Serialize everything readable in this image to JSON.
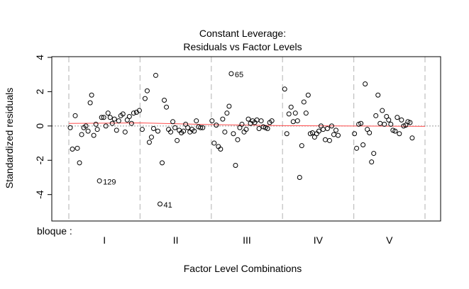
{
  "chart_data": {
    "type": "scatter",
    "title": "Constant Leverage:",
    "subtitle": "Residuals vs Factor Levels",
    "xlabel": "Factor Level Combinations",
    "ylabel": "Standardized residuals",
    "factor_name": "bloque :",
    "groups": [
      "I",
      "II",
      "III",
      "IV",
      "V"
    ],
    "ylim": [
      -5.5,
      4
    ],
    "yticks": [
      "4",
      "2",
      "0",
      "-2",
      "-4"
    ],
    "ytick_values": [
      4,
      2,
      0,
      -2,
      -4
    ],
    "point_color": "#000000",
    "smooth_color": "#ff4d4d",
    "zero_line_color": "#999999",
    "divider_color": "#bfbfbf",
    "points": [
      {
        "x": 0.02,
        "y": -0.1
      },
      {
        "x": 0.05,
        "y": -1.35
      },
      {
        "x": 0.09,
        "y": 0.6
      },
      {
        "x": 0.12,
        "y": -1.3
      },
      {
        "x": 0.15,
        "y": -2.15
      },
      {
        "x": 0.18,
        "y": -0.5
      },
      {
        "x": 0.21,
        "y": -0.1
      },
      {
        "x": 0.24,
        "y": 0.0
      },
      {
        "x": 0.27,
        "y": -0.3
      },
      {
        "x": 0.3,
        "y": 1.35
      },
      {
        "x": 0.32,
        "y": 1.8
      },
      {
        "x": 0.35,
        "y": -0.55
      },
      {
        "x": 0.38,
        "y": 0.1
      },
      {
        "x": 0.4,
        "y": -0.2
      },
      {
        "x": 0.43,
        "y": -3.2
      },
      {
        "x": 0.46,
        "y": 0.5
      },
      {
        "x": 0.49,
        "y": 0.5
      },
      {
        "x": 0.52,
        "y": 0.0
      },
      {
        "x": 0.55,
        "y": 0.75
      },
      {
        "x": 0.58,
        "y": 0.5
      },
      {
        "x": 0.61,
        "y": 0.15
      },
      {
        "x": 0.64,
        "y": 0.4
      },
      {
        "x": 0.67,
        "y": -0.25
      },
      {
        "x": 0.7,
        "y": 0.3
      },
      {
        "x": 0.73,
        "y": 0.6
      },
      {
        "x": 0.76,
        "y": 0.7
      },
      {
        "x": 0.79,
        "y": -0.35
      },
      {
        "x": 0.82,
        "y": 0.35
      },
      {
        "x": 0.85,
        "y": 0.55
      },
      {
        "x": 0.88,
        "y": 0.15
      },
      {
        "x": 0.91,
        "y": 0.75
      },
      {
        "x": 0.95,
        "y": 0.8
      },
      {
        "x": 0.99,
        "y": 0.9
      },
      {
        "x": 1.03,
        "y": -0.2
      },
      {
        "x": 1.07,
        "y": 1.6
      },
      {
        "x": 1.1,
        "y": 2.05
      },
      {
        "x": 1.13,
        "y": -0.95
      },
      {
        "x": 1.16,
        "y": -0.65
      },
      {
        "x": 1.19,
        "y": -0.15
      },
      {
        "x": 1.22,
        "y": 2.95
      },
      {
        "x": 1.25,
        "y": -0.3
      },
      {
        "x": 1.28,
        "y": -4.55
      },
      {
        "x": 1.31,
        "y": -2.15
      },
      {
        "x": 1.34,
        "y": 1.5
      },
      {
        "x": 1.37,
        "y": 1.1
      },
      {
        "x": 1.4,
        "y": -0.2
      },
      {
        "x": 1.43,
        "y": -0.35
      },
      {
        "x": 1.46,
        "y": 0.25
      },
      {
        "x": 1.49,
        "y": -0.1
      },
      {
        "x": 1.52,
        "y": -0.85
      },
      {
        "x": 1.55,
        "y": -0.25
      },
      {
        "x": 1.58,
        "y": -0.4
      },
      {
        "x": 1.61,
        "y": -0.3
      },
      {
        "x": 1.64,
        "y": 0.1
      },
      {
        "x": 1.67,
        "y": -0.1
      },
      {
        "x": 1.7,
        "y": -0.35
      },
      {
        "x": 1.73,
        "y": -0.2
      },
      {
        "x": 1.76,
        "y": -0.3
      },
      {
        "x": 1.79,
        "y": 0.3
      },
      {
        "x": 1.82,
        "y": -0.05
      },
      {
        "x": 1.85,
        "y": -0.1
      },
      {
        "x": 1.88,
        "y": -0.1
      },
      {
        "x": 2.01,
        "y": 0.3
      },
      {
        "x": 2.04,
        "y": -1.0
      },
      {
        "x": 2.07,
        "y": 0.05
      },
      {
        "x": 2.1,
        "y": -1.2
      },
      {
        "x": 2.13,
        "y": -1.35
      },
      {
        "x": 2.16,
        "y": 0.4
      },
      {
        "x": 2.19,
        "y": -0.35
      },
      {
        "x": 2.22,
        "y": 0.75
      },
      {
        "x": 2.25,
        "y": 1.15
      },
      {
        "x": 2.28,
        "y": 3.05
      },
      {
        "x": 2.31,
        "y": -0.45
      },
      {
        "x": 2.34,
        "y": -2.3
      },
      {
        "x": 2.37,
        "y": -0.8
      },
      {
        "x": 2.4,
        "y": -0.1
      },
      {
        "x": 2.43,
        "y": 0.1
      },
      {
        "x": 2.46,
        "y": -0.35
      },
      {
        "x": 2.49,
        "y": -0.2
      },
      {
        "x": 2.52,
        "y": 0.4
      },
      {
        "x": 2.55,
        "y": 0.15
      },
      {
        "x": 2.58,
        "y": 0.3
      },
      {
        "x": 2.61,
        "y": 0.2
      },
      {
        "x": 2.64,
        "y": 0.35
      },
      {
        "x": 2.67,
        "y": -0.15
      },
      {
        "x": 2.7,
        "y": 0.3
      },
      {
        "x": 2.73,
        "y": -0.05
      },
      {
        "x": 2.76,
        "y": -0.1
      },
      {
        "x": 2.79,
        "y": -0.15
      },
      {
        "x": 2.82,
        "y": 0.2
      },
      {
        "x": 2.85,
        "y": 0.3
      },
      {
        "x": 3.03,
        "y": 2.15
      },
      {
        "x": 3.06,
        "y": -0.45
      },
      {
        "x": 3.09,
        "y": 0.7
      },
      {
        "x": 3.12,
        "y": 1.1
      },
      {
        "x": 3.15,
        "y": 0.25
      },
      {
        "x": 3.18,
        "y": 0.75
      },
      {
        "x": 3.21,
        "y": 0.3
      },
      {
        "x": 3.24,
        "y": -3.0
      },
      {
        "x": 3.27,
        "y": -1.15
      },
      {
        "x": 3.3,
        "y": 1.4
      },
      {
        "x": 3.33,
        "y": 0.75
      },
      {
        "x": 3.36,
        "y": 1.8
      },
      {
        "x": 3.39,
        "y": -0.45
      },
      {
        "x": 3.42,
        "y": -0.4
      },
      {
        "x": 3.45,
        "y": -0.65
      },
      {
        "x": 3.48,
        "y": -0.45
      },
      {
        "x": 3.51,
        "y": -0.3
      },
      {
        "x": 3.54,
        "y": 0.0
      },
      {
        "x": 3.57,
        "y": -0.2
      },
      {
        "x": 3.6,
        "y": -0.8
      },
      {
        "x": 3.63,
        "y": -0.15
      },
      {
        "x": 3.66,
        "y": -0.85
      },
      {
        "x": 3.69,
        "y": 0.0
      },
      {
        "x": 3.72,
        "y": -0.5
      },
      {
        "x": 3.75,
        "y": -0.25
      },
      {
        "x": 3.78,
        "y": -0.55
      },
      {
        "x": 4.01,
        "y": -0.45
      },
      {
        "x": 4.04,
        "y": -1.3
      },
      {
        "x": 4.07,
        "y": 0.1
      },
      {
        "x": 4.1,
        "y": 0.15
      },
      {
        "x": 4.13,
        "y": -1.1
      },
      {
        "x": 4.16,
        "y": 2.45
      },
      {
        "x": 4.19,
        "y": -0.2
      },
      {
        "x": 4.22,
        "y": -0.4
      },
      {
        "x": 4.25,
        "y": -2.1
      },
      {
        "x": 4.28,
        "y": -1.6
      },
      {
        "x": 4.31,
        "y": 0.6
      },
      {
        "x": 4.34,
        "y": 1.8
      },
      {
        "x": 4.37,
        "y": 0.15
      },
      {
        "x": 4.4,
        "y": 0.9
      },
      {
        "x": 4.43,
        "y": 0.1
      },
      {
        "x": 4.46,
        "y": 0.55
      },
      {
        "x": 4.49,
        "y": 0.35
      },
      {
        "x": 4.52,
        "y": 0.1
      },
      {
        "x": 4.55,
        "y": -0.25
      },
      {
        "x": 4.58,
        "y": -0.3
      },
      {
        "x": 4.61,
        "y": 0.5
      },
      {
        "x": 4.64,
        "y": -0.45
      },
      {
        "x": 4.67,
        "y": 0.35
      },
      {
        "x": 4.7,
        "y": 0.0
      },
      {
        "x": 4.73,
        "y": 0.05
      },
      {
        "x": 4.76,
        "y": 0.25
      },
      {
        "x": 4.79,
        "y": 0.2
      },
      {
        "x": 4.82,
        "y": -0.7
      }
    ],
    "annotations": [
      {
        "label": "129",
        "x": 0.43,
        "y": -3.2
      },
      {
        "label": "41",
        "x": 1.28,
        "y": -4.55
      },
      {
        "label": "65",
        "x": 2.28,
        "y": 3.05
      }
    ],
    "smooth_line": [
      {
        "x": 0.0,
        "y": 0.15
      },
      {
        "x": 1.0,
        "y": 0.18
      },
      {
        "x": 2.0,
        "y": 0.08
      },
      {
        "x": 3.0,
        "y": 0.02
      },
      {
        "x": 4.0,
        "y": 0.0
      },
      {
        "x": 5.0,
        "y": -0.02
      }
    ]
  }
}
